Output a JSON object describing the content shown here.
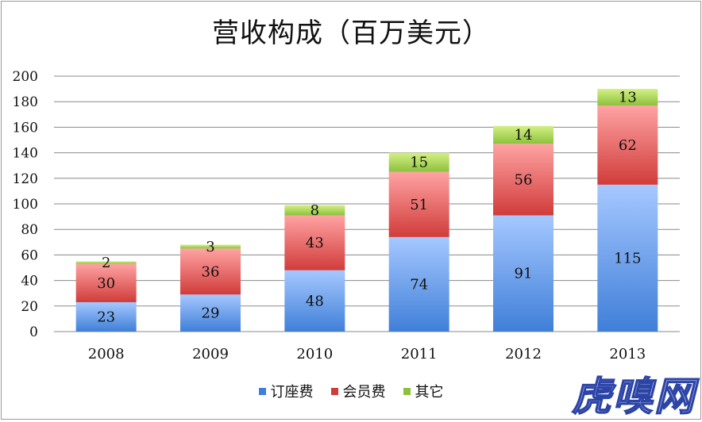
{
  "chart_data": {
    "type": "bar",
    "stacked": true,
    "title": "营收构成（百万美元）",
    "categories": [
      "2008",
      "2009",
      "2010",
      "2011",
      "2012",
      "2013"
    ],
    "series": [
      {
        "name": "订座费",
        "values": [
          23,
          29,
          48,
          74,
          91,
          115
        ]
      },
      {
        "name": "会员费",
        "values": [
          30,
          36,
          43,
          51,
          56,
          62
        ]
      },
      {
        "name": "其它",
        "values": [
          2,
          3,
          8,
          15,
          14,
          13
        ]
      }
    ],
    "yticks": [
      "0",
      "20",
      "40",
      "60",
      "80",
      "100",
      "120",
      "140",
      "160",
      "180",
      "200"
    ],
    "ylim": [
      0,
      200
    ],
    "grid": true,
    "legend_position": "bottom",
    "colors": {
      "series_top": [
        "#a6c8ff",
        "#ffa3a3",
        "#d4f085"
      ],
      "series_bottom": [
        "#3f7fd8",
        "#d03c3a",
        "#8cc13c"
      ],
      "grid": "#8a8a8a"
    }
  },
  "watermark": {
    "text": "虎嗅网"
  }
}
